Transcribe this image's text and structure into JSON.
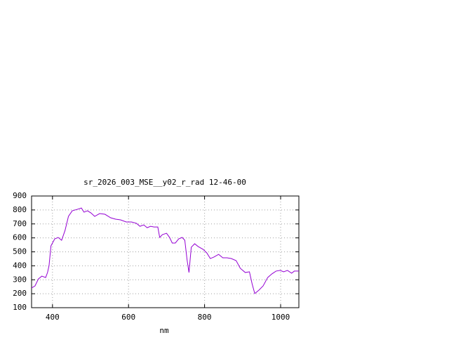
{
  "chart_data": {
    "type": "line",
    "title": "sr_2026_003_MSE__y02_r_rad 12-46-00",
    "x_label": "nm",
    "xlim": [
      345,
      1048
    ],
    "xticks": [
      400,
      600,
      800,
      1000
    ],
    "ylim": [
      100,
      900
    ],
    "yticks": [
      100,
      200,
      300,
      400,
      500,
      600,
      700,
      800,
      900
    ],
    "grid": true,
    "series": [
      {
        "color": "#9400d3",
        "x": [
          345,
          354,
          363,
          372,
          382,
          387,
          391,
          396,
          406,
          415,
          424,
          433,
          442,
          452,
          465,
          476,
          483,
          492,
          501,
          511,
          524,
          538,
          553,
          566,
          579,
          594,
          608,
          621,
          630,
          640,
          649,
          658,
          667,
          677,
          682,
          689,
          700,
          708,
          715,
          723,
          732,
          741,
          748,
          754,
          759,
          765,
          774,
          783,
          796,
          806,
          815,
          824,
          837,
          848,
          859,
          870,
          883,
          894,
          907,
          918,
          925,
          932,
          943,
          954,
          966,
          977,
          988,
          999,
          1008,
          1018,
          1029,
          1036,
          1048
        ],
        "values": [
          241,
          256,
          306,
          326,
          316,
          352,
          402,
          543,
          593,
          603,
          583,
          653,
          754,
          794,
          804,
          814,
          784,
          794,
          779,
          754,
          774,
          769,
          744,
          734,
          729,
          714,
          714,
          704,
          683,
          693,
          673,
          683,
          678,
          678,
          603,
          623,
          633,
          603,
          563,
          563,
          593,
          603,
          583,
          442,
          352,
          533,
          558,
          538,
          518,
          492,
          452,
          462,
          482,
          457,
          457,
          452,
          437,
          382,
          352,
          357,
          271,
          201,
          226,
          256,
          316,
          342,
          362,
          367,
          357,
          367,
          347,
          362,
          362
        ]
      }
    ]
  }
}
